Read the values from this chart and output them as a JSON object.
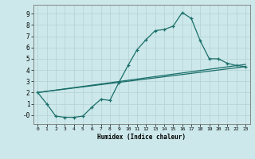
{
  "xlabel": "Humidex (Indice chaleur)",
  "background_color": "#cce8ea",
  "grid_color": "#b8d4d6",
  "line_color": "#1a6e6a",
  "x_min": -0.5,
  "x_max": 23.5,
  "y_min": -0.8,
  "y_max": 9.8,
  "yticks": [
    0,
    1,
    2,
    3,
    4,
    5,
    6,
    7,
    8,
    9
  ],
  "ytick_labels": [
    "-0",
    "1",
    "2",
    "3",
    "4",
    "5",
    "6",
    "7",
    "8",
    "9"
  ],
  "xticks": [
    0,
    1,
    2,
    3,
    4,
    5,
    6,
    7,
    8,
    9,
    10,
    11,
    12,
    13,
    14,
    15,
    16,
    17,
    18,
    19,
    20,
    21,
    22,
    23
  ],
  "curve1_x": [
    0,
    1,
    2,
    3,
    4,
    5,
    6,
    7,
    8,
    9,
    10,
    11,
    12,
    13,
    14,
    15,
    16,
    17,
    18,
    19,
    20,
    21,
    22,
    23
  ],
  "curve1_y": [
    2.0,
    1.0,
    -0.1,
    -0.2,
    -0.2,
    -0.1,
    0.7,
    1.4,
    1.3,
    2.9,
    4.4,
    5.8,
    6.7,
    7.5,
    7.6,
    7.9,
    9.1,
    8.6,
    6.6,
    5.0,
    5.0,
    4.6,
    4.4,
    4.3
  ],
  "line2_x": [
    0,
    23
  ],
  "line2_y": [
    2.0,
    4.5
  ],
  "line3_x": [
    0,
    23
  ],
  "line3_y": [
    2.0,
    4.3
  ],
  "line_width": 0.9,
  "marker": "+"
}
